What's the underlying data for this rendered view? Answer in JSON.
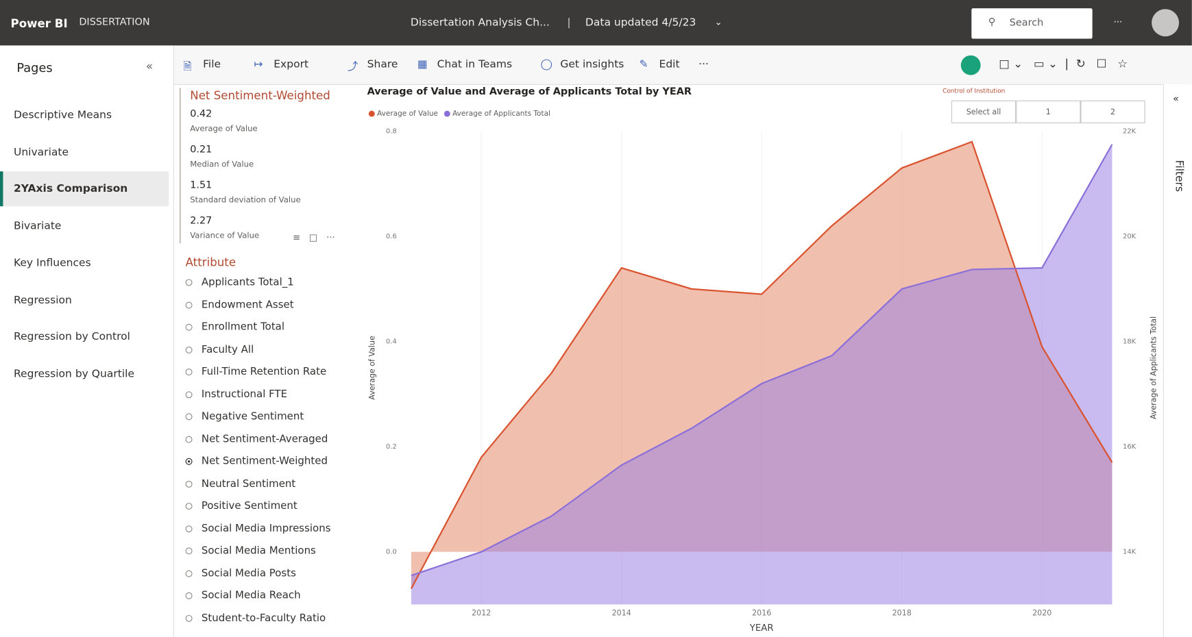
{
  "header": {
    "app": "Power BI",
    "workspace": "DISSERTATION",
    "report": "Dissertation Analysis Ch...",
    "updated": "Data updated 4/5/23",
    "search": "Search"
  },
  "pages": {
    "title": "Pages",
    "items": [
      "Descriptive Means",
      "Univariate",
      "2YAxis Comparison",
      "Bivariate",
      "Key Influences",
      "Regression",
      "Regression by Control",
      "Regression by Quartile"
    ],
    "selected": "2YAxis Comparison"
  },
  "toolbar": [
    "File",
    "Export",
    "Share",
    "Chat in Teams",
    "Get insights",
    "Edit"
  ],
  "card": {
    "title": "Net Sentiment-Weighted",
    "stats": [
      {
        "value": "0.42",
        "label": "Average of Value"
      },
      {
        "value": "0.21",
        "label": "Median of Value"
      },
      {
        "value": "1.51",
        "label": "Standard deviation of Value"
      },
      {
        "value": "2.27",
        "label": "Variance of Value"
      }
    ]
  },
  "attribute": {
    "title": "Attribute",
    "items": [
      "Applicants Total_1",
      "Endowment Asset",
      "Enrollment Total",
      "Faculty All",
      "Full-Time Retention Rate",
      "Instructional FTE",
      "Negative Sentiment",
      "Net Sentiment-Averaged",
      "Net Sentiment-Weighted",
      "Neutral Sentiment",
      "Positive Sentiment",
      "Social Media Impressions",
      "Social Media Mentions",
      "Social Media Posts",
      "Social Media Reach",
      "Student-to-Faculty Ratio"
    ],
    "selected": "Net Sentiment-Weighted"
  },
  "slicer": {
    "title": "Control of Institution",
    "options": [
      "Select all",
      "1",
      "2"
    ]
  },
  "filters": "Filters",
  "chart_data": {
    "type": "area",
    "title": "Average of Value and Average of Applicants Total by YEAR",
    "x": [
      2011,
      2012,
      2013,
      2014,
      2015,
      2016,
      2017,
      2018,
      2019,
      2020,
      2021
    ],
    "xlim": [
      2011,
      2021
    ],
    "xticks": [
      2012,
      2014,
      2016,
      2018,
      2020
    ],
    "xlabel": "YEAR",
    "ylabel": "Average of Value",
    "y2label": "Average of Applicants Total",
    "ylim": [
      -0.1,
      0.8
    ],
    "yticks": [
      {
        "value": 0,
        "label": "0.0"
      },
      0.2,
      0.4,
      0.6,
      0.8
    ],
    "y2lim": [
      13000,
      22000
    ],
    "y2ticks": [
      {
        "value": 14000,
        "label": "14K"
      },
      {
        "value": 16000,
        "label": "16K"
      },
      {
        "value": 18000,
        "label": "18K"
      },
      {
        "value": 20000,
        "label": "20K"
      },
      {
        "value": 22000,
        "label": "22K"
      }
    ],
    "grid": true,
    "legend": "top-left",
    "series": [
      {
        "name": "Average of Value",
        "color": "#d9532f",
        "values": [
          -0.07,
          0.18,
          0.34,
          0.54,
          0.5,
          0.49,
          0.62,
          0.73,
          0.78,
          0.39,
          0.17
        ]
      },
      {
        "name": "Average of Applicants Total",
        "color": "#8a6fd9",
        "axis": "y2",
        "values": [
          13550,
          14000,
          14680,
          15650,
          16350,
          17200,
          17730,
          19000,
          19370,
          19400,
          21750
        ]
      }
    ]
  }
}
